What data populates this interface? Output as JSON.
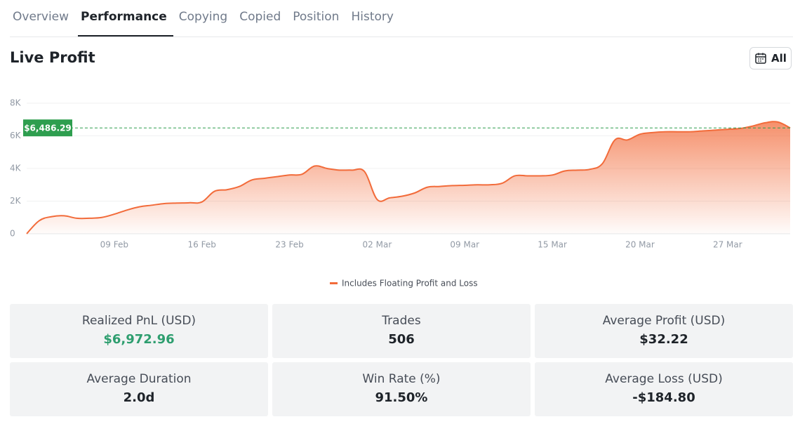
{
  "tabs": [
    "Overview",
    "Performance",
    "Copying",
    "Copied",
    "Position",
    "History"
  ],
  "active_tab": 1,
  "header": {
    "title": "Live Profit",
    "range_button": "All"
  },
  "chart_data": {
    "type": "area",
    "categories": [
      null,
      null,
      null,
      null,
      null,
      null,
      null,
      "09 Feb",
      null,
      null,
      null,
      null,
      null,
      null,
      "16 Feb",
      null,
      null,
      null,
      null,
      null,
      null,
      "23 Feb",
      null,
      null,
      null,
      null,
      null,
      null,
      "02 Mar",
      null,
      null,
      null,
      null,
      null,
      null,
      "09 Mar",
      null,
      null,
      null,
      null,
      null,
      null,
      "15 Mar",
      null,
      null,
      null,
      null,
      null,
      null,
      "20 Mar",
      null,
      null,
      null,
      null,
      null,
      null,
      "27 Mar",
      null,
      null,
      null,
      null,
      null
    ],
    "series": [
      {
        "name": "Includes Floating Profit and Loss",
        "color": "#f26b3a",
        "values": [
          0,
          800,
          1050,
          1100,
          950,
          950,
          1000,
          1200,
          1450,
          1650,
          1750,
          1850,
          1880,
          1900,
          1950,
          2600,
          2700,
          2900,
          3300,
          3400,
          3500,
          3600,
          3650,
          4150,
          4000,
          3900,
          3900,
          3800,
          2100,
          2200,
          2300,
          2500,
          2850,
          2900,
          2950,
          2970,
          3000,
          3000,
          3100,
          3550,
          3550,
          3550,
          3600,
          3850,
          3900,
          3950,
          4300,
          5750,
          5750,
          6100,
          6200,
          6250,
          6250,
          6250,
          6300,
          6350,
          6400,
          6450,
          6600,
          6800,
          6850,
          6486.29
        ]
      }
    ],
    "ylim": [
      0,
      8000
    ],
    "yticks": [
      0,
      {
        "value": 2000,
        "label": "2K"
      },
      {
        "value": 4000,
        "label": "4K"
      },
      {
        "value": 6000,
        "label": "6K"
      },
      {
        "value": 8000,
        "label": "8K"
      }
    ],
    "grid": true,
    "current": {
      "value": 6486.29,
      "label": "$6,486.29",
      "color": "#2e9e4f"
    }
  },
  "stats": [
    {
      "label": "Realized PnL (USD)",
      "value": "$6,972.96",
      "positive": true
    },
    {
      "label": "Trades",
      "value": "506"
    },
    {
      "label": "Average Profit (USD)",
      "value": "$32.22"
    },
    {
      "label": "Average Duration",
      "value": "2.0d"
    },
    {
      "label": "Win Rate (%)",
      "value": "91.50%"
    },
    {
      "label": "Average Loss (USD)",
      "value": "-$184.80"
    }
  ]
}
